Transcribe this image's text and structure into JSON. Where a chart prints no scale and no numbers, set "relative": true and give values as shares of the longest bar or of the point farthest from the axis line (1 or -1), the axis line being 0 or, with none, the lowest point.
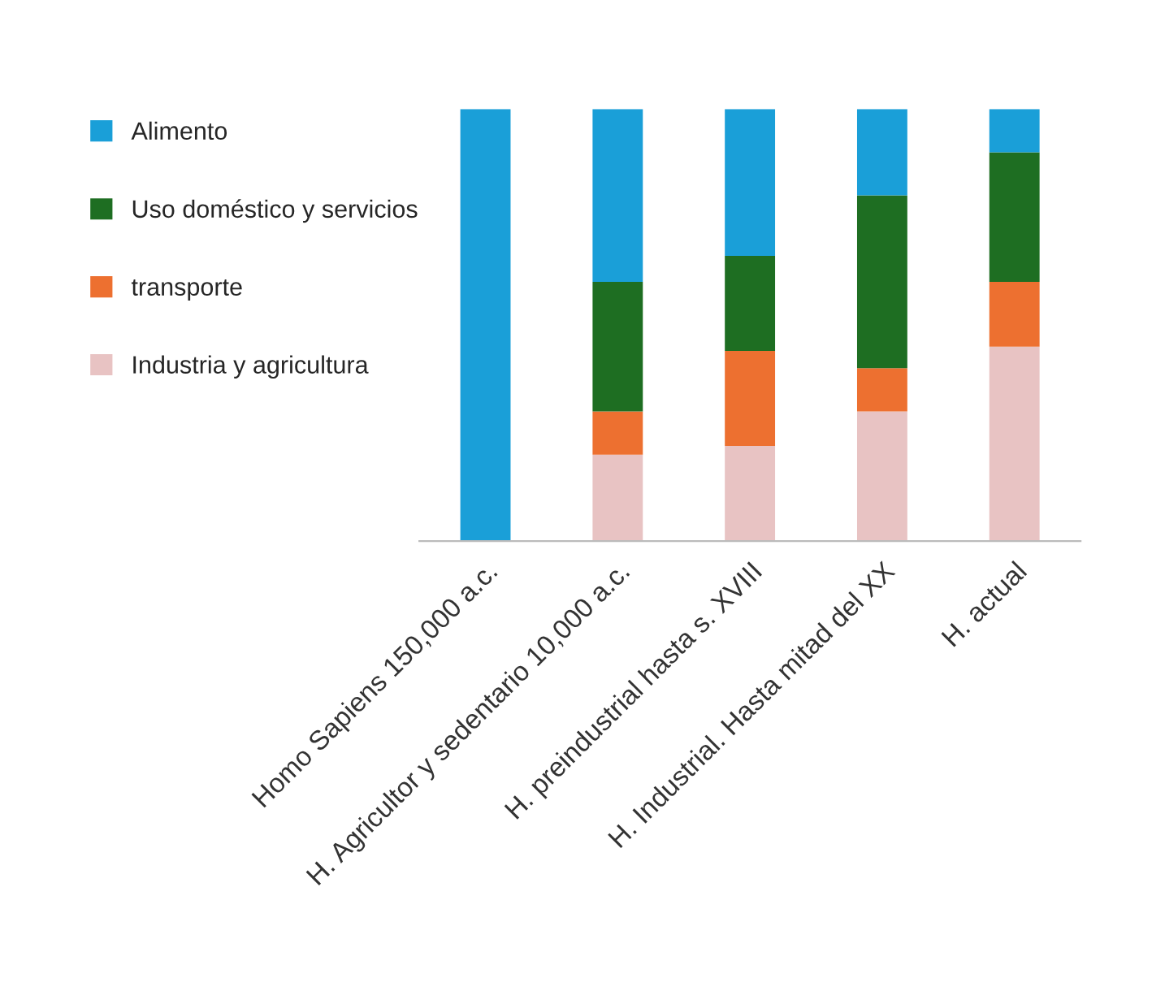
{
  "chart_data": {
    "type": "bar",
    "stacked": true,
    "relative": true,
    "legend": "left",
    "categories": [
      "Homo Sapiens 150,000 a.c.",
      "H. Agricultor y sedentario 10,000 a.c.",
      "H. preindustrial hasta s. XVIII",
      "H. Industrial. Hasta mitad del XX",
      "H. actual"
    ],
    "series": [
      {
        "name": "Industria y agricultura",
        "color": "#e8c3c3",
        "values": [
          0,
          0.2,
          0.22,
          0.3,
          0.45
        ]
      },
      {
        "name": "transporte",
        "color": "#ed7030",
        "values": [
          0,
          0.1,
          0.22,
          0.1,
          0.15
        ]
      },
      {
        "name": "Uso doméstico y servicios",
        "color": "#1e6e22",
        "values": [
          0,
          0.3,
          0.22,
          0.4,
          0.3
        ]
      },
      {
        "name": "Alimento",
        "color": "#1a9fd8",
        "values": [
          1,
          0.4,
          0.34,
          0.2,
          0.1
        ]
      }
    ]
  }
}
